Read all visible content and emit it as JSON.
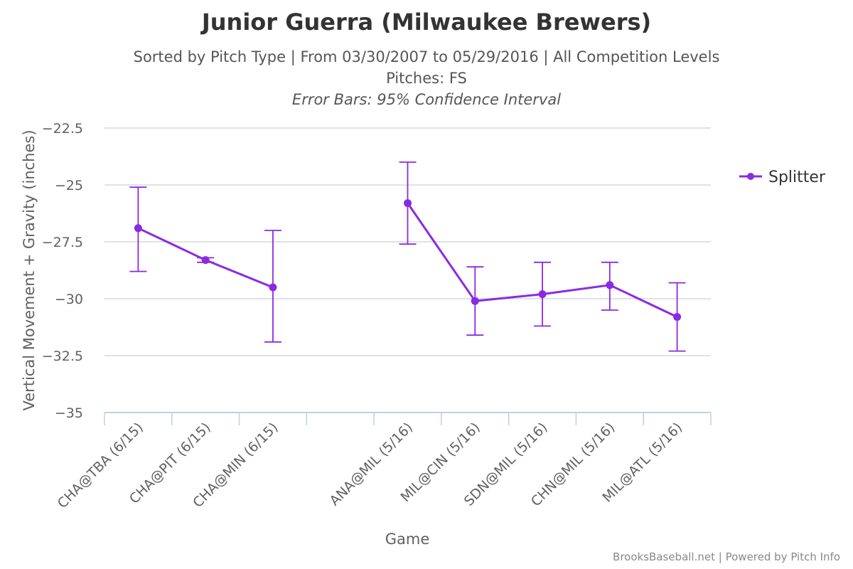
{
  "header": {
    "title": "Junior Guerra (Milwaukee Brewers)",
    "subtitle_line1": "Sorted by Pitch Type | From 03/30/2007 to 05/29/2016 | All Competition Levels",
    "subtitle_line2": "Pitches: FS",
    "subtitle_line3": "Error Bars: 95% Confidence Interval"
  },
  "footer": {
    "credit_site": "BrooksBaseball.net",
    "credit_sep": "|",
    "credit_powered": "Powered by Pitch Info"
  },
  "colors": {
    "series": "#8a2be2",
    "grid": "#d8d8d8",
    "axis": "#c0d0e0",
    "text": "#606060"
  },
  "chart_data": {
    "type": "line",
    "title": "Junior Guerra (Milwaukee Brewers)",
    "xlabel": "Game",
    "ylabel": "Vertical Movement + Gravity (inches)",
    "ylim": [
      -35,
      -22.5
    ],
    "yticks": [
      -22.5,
      -25,
      -27.5,
      -30,
      -32.5,
      -35
    ],
    "ytick_labels": [
      "−22.5",
      "−25",
      "−27.5",
      "−30",
      "−32.5",
      "−35"
    ],
    "categories": [
      "CHA@TBA (6/15)",
      "CHA@PIT (6/15)",
      "CHA@MIN (6/15)",
      "",
      "ANA@MIL (5/16)",
      "MIL@CIN (5/16)",
      "SDN@MIL (5/16)",
      "CHN@MIL (5/16)",
      "MIL@ATL (5/16)"
    ],
    "grid": true,
    "legend_position": "right",
    "series": [
      {
        "name": "Splitter",
        "values": [
          -26.9,
          -28.3,
          -29.5,
          null,
          -25.8,
          -30.1,
          -29.8,
          -29.4,
          -30.8
        ],
        "error_low": [
          -28.8,
          -28.4,
          -31.9,
          null,
          -27.6,
          -31.6,
          -31.2,
          -30.5,
          -32.3
        ],
        "error_high": [
          -25.1,
          -28.2,
          -27.0,
          null,
          -24.0,
          -28.6,
          -28.4,
          -28.4,
          -29.3
        ]
      }
    ]
  }
}
